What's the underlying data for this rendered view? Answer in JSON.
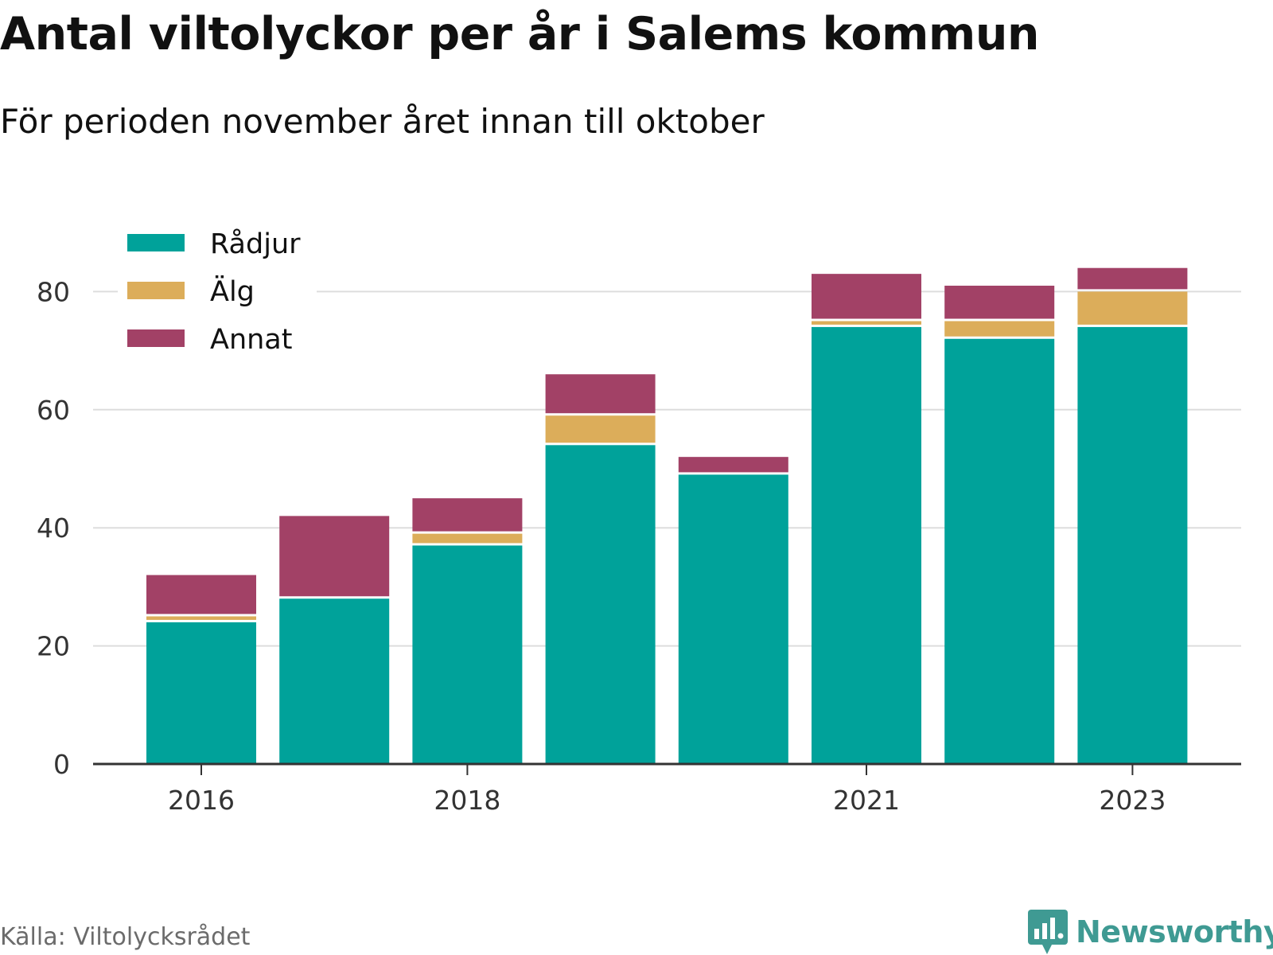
{
  "header": {
    "title": "Antal viltolyckor per år i Salems kommun",
    "subtitle": "För perioden november året innan till oktober"
  },
  "footer": {
    "source": "Källa: Viltolycksrådet",
    "brand_name": "Newsworthy",
    "brand_icon": "newsworthy-logo-icon"
  },
  "colors": {
    "Rådjur": "#00a29a",
    "Älg": "#dcad5a",
    "Annat": "#a24166",
    "axis": "#333333",
    "grid": "#dddddd",
    "brand": "#3f9a93"
  },
  "chart_data": {
    "type": "bar",
    "stacked": true,
    "title": "Antal viltolyckor per år i Salems kommun",
    "subtitle": "För perioden november året innan till oktober",
    "xlabel": "",
    "ylabel": "",
    "categories": [
      "2016",
      "2017",
      "2018",
      "2019",
      "2020",
      "2021",
      "2022",
      "2023"
    ],
    "x_tick_labels": [
      "2016",
      "2018",
      "2021",
      "2023"
    ],
    "y_ticks": [
      0,
      20,
      40,
      60,
      80
    ],
    "ylim": [
      0,
      88
    ],
    "grid": true,
    "legend_position": "top-left",
    "series": [
      {
        "name": "Rådjur",
        "values": [
          24,
          28,
          37,
          54,
          49,
          74,
          72,
          74
        ]
      },
      {
        "name": "Älg",
        "values": [
          1,
          0,
          2,
          5,
          0,
          1,
          3,
          6
        ]
      },
      {
        "name": "Annat",
        "values": [
          7,
          14,
          6,
          7,
          3,
          8,
          6,
          4
        ]
      }
    ]
  }
}
